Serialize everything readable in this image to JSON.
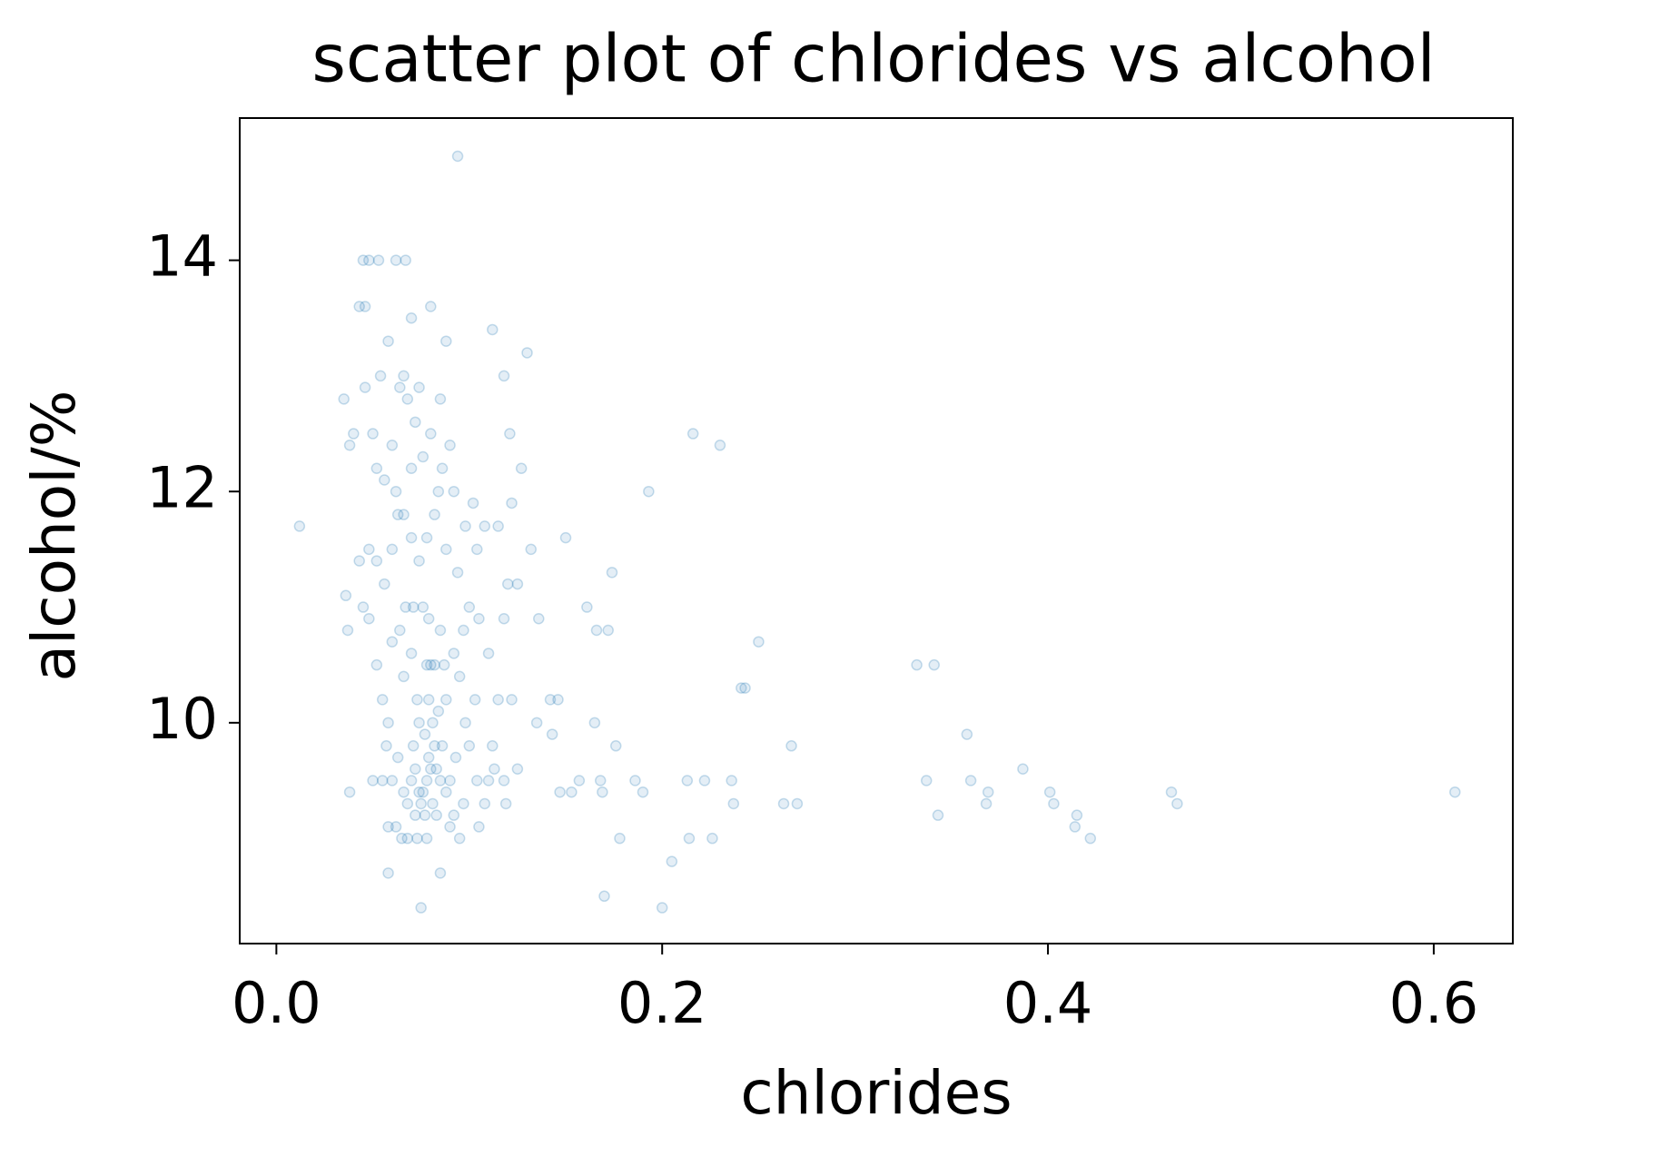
{
  "chart_data": {
    "type": "scatter",
    "title": "scatter plot of chlorides vs alcohol",
    "x_label": "chlorides",
    "y_label": "alcohol/%",
    "color": "#1f77b4",
    "x": [
      0.012,
      0.094,
      0.611,
      0.464,
      0.467,
      0.422,
      0.415,
      0.414,
      0.403,
      0.401,
      0.387,
      0.369,
      0.368,
      0.36,
      0.358,
      0.341,
      0.332,
      0.343,
      0.337,
      0.267,
      0.263,
      0.27,
      0.25,
      0.241,
      0.243,
      0.236,
      0.237,
      0.23,
      0.216,
      0.226,
      0.213,
      0.214,
      0.222,
      0.205,
      0.2,
      0.193,
      0.19,
      0.186,
      0.178,
      0.176,
      0.174,
      0.172,
      0.166,
      0.165,
      0.161,
      0.169,
      0.168,
      0.17,
      0.157,
      0.153,
      0.15,
      0.147,
      0.146,
      0.142,
      0.143,
      0.136,
      0.132,
      0.13,
      0.127,
      0.135,
      0.125,
      0.118,
      0.112,
      0.08,
      0.07,
      0.048,
      0.045,
      0.053,
      0.062,
      0.067,
      0.043,
      0.046,
      0.035,
      0.038,
      0.04,
      0.036,
      0.037,
      0.038,
      0.058,
      0.085,
      0.075,
      0.078,
      0.073,
      0.076,
      0.078,
      0.08,
      0.082,
      0.079,
      0.077,
      0.081,
      0.075,
      0.083,
      0.074,
      0.085,
      0.088,
      0.09,
      0.07,
      0.068,
      0.066,
      0.072,
      0.086,
      0.084,
      0.073,
      0.078,
      0.08,
      0.082,
      0.087,
      0.07,
      0.064,
      0.067,
      0.071,
      0.076,
      0.079,
      0.085,
      0.092,
      0.095,
      0.098,
      0.1,
      0.104,
      0.108,
      0.11,
      0.112,
      0.115,
      0.118,
      0.12,
      0.122,
      0.121,
      0.119,
      0.105,
      0.095,
      0.09,
      0.092,
      0.097,
      0.06,
      0.055,
      0.05,
      0.058,
      0.062,
      0.065,
      0.068,
      0.072,
      0.058,
      0.055,
      0.052,
      0.048,
      0.045,
      0.043,
      0.048,
      0.052,
      0.056,
      0.06,
      0.063,
      0.066,
      0.07,
      0.074,
      0.078,
      0.082,
      0.088,
      0.094,
      0.1,
      0.105,
      0.11,
      0.098,
      0.102,
      0.108,
      0.09,
      0.086,
      0.08,
      0.076,
      0.072,
      0.068,
      0.064,
      0.06,
      0.056,
      0.052,
      0.05,
      0.046,
      0.054,
      0.058,
      0.066,
      0.074,
      0.085,
      0.088,
      0.062,
      0.07,
      0.084,
      0.092,
      0.104,
      0.115,
      0.125,
      0.122,
      0.118,
      0.113,
      0.103,
      0.097,
      0.093,
      0.088,
      0.074,
      0.066,
      0.06,
      0.057,
      0.063,
      0.071,
      0.077,
      0.081,
      0.083,
      0.079
    ],
    "values": [
      11.7,
      14.9,
      9.4,
      9.4,
      9.3,
      9.0,
      9.2,
      9.1,
      9.3,
      9.4,
      9.6,
      9.4,
      9.3,
      9.5,
      9.9,
      10.5,
      10.5,
      9.2,
      9.5,
      9.8,
      9.3,
      9.3,
      10.7,
      10.3,
      10.3,
      9.5,
      9.3,
      12.4,
      12.5,
      9.0,
      9.5,
      9.0,
      9.5,
      8.8,
      8.4,
      12.0,
      9.4,
      9.5,
      9.0,
      9.8,
      11.3,
      10.8,
      10.8,
      10.0,
      11.0,
      9.4,
      9.5,
      8.5,
      9.5,
      9.4,
      11.6,
      9.4,
      10.2,
      10.2,
      9.9,
      10.9,
      11.5,
      13.2,
      12.2,
      10.0,
      9.6,
      13.0,
      13.4,
      13.6,
      13.5,
      14.0,
      14.0,
      14.0,
      14.0,
      14.0,
      13.6,
      13.6,
      12.8,
      12.4,
      12.5,
      11.1,
      10.8,
      9.4,
      8.7,
      8.7,
      8.4,
      9.0,
      9.0,
      9.4,
      9.5,
      9.6,
      9.8,
      9.7,
      9.9,
      10.0,
      9.3,
      9.2,
      9.4,
      9.5,
      9.4,
      9.5,
      9.5,
      9.3,
      9.4,
      9.6,
      9.8,
      10.1,
      10.2,
      10.5,
      10.5,
      10.5,
      10.5,
      10.6,
      10.8,
      11.0,
      11.0,
      11.0,
      10.9,
      10.8,
      10.6,
      10.4,
      10.0,
      9.8,
      9.5,
      9.3,
      9.5,
      9.8,
      10.2,
      10.9,
      11.2,
      11.9,
      12.5,
      9.3,
      9.1,
      9.0,
      9.1,
      9.2,
      9.3,
      9.5,
      9.5,
      9.5,
      9.1,
      9.1,
      9.0,
      9.0,
      9.2,
      10.0,
      10.2,
      10.5,
      10.9,
      11.0,
      11.4,
      11.5,
      11.4,
      11.2,
      11.5,
      11.8,
      11.8,
      11.6,
      11.4,
      11.6,
      11.8,
      11.5,
      11.3,
      11.0,
      10.9,
      10.6,
      11.7,
      11.9,
      11.7,
      12.4,
      12.2,
      12.5,
      12.3,
      12.6,
      12.8,
      12.9,
      12.4,
      12.1,
      12.2,
      12.5,
      12.9,
      13.0,
      13.3,
      13.0,
      12.9,
      12.8,
      13.3,
      12.0,
      12.2,
      12.0,
      12.0,
      11.5,
      11.7,
      11.2,
      10.2,
      9.5,
      9.6,
      10.2,
      10.8,
      9.7,
      10.2,
      10.0,
      10.4,
      10.7,
      9.8,
      9.7,
      9.8,
      9.2,
      9.3,
      9.6,
      10.2
    ],
    "xlim": [
      -0.019,
      0.641
    ],
    "xticks": [
      {
        "value": 0,
        "label": "0.0"
      },
      0.2,
      0.4,
      0.6
    ],
    "ylim": [
      8.09,
      15.23
    ],
    "yticks": [
      10,
      12,
      14
    ]
  }
}
